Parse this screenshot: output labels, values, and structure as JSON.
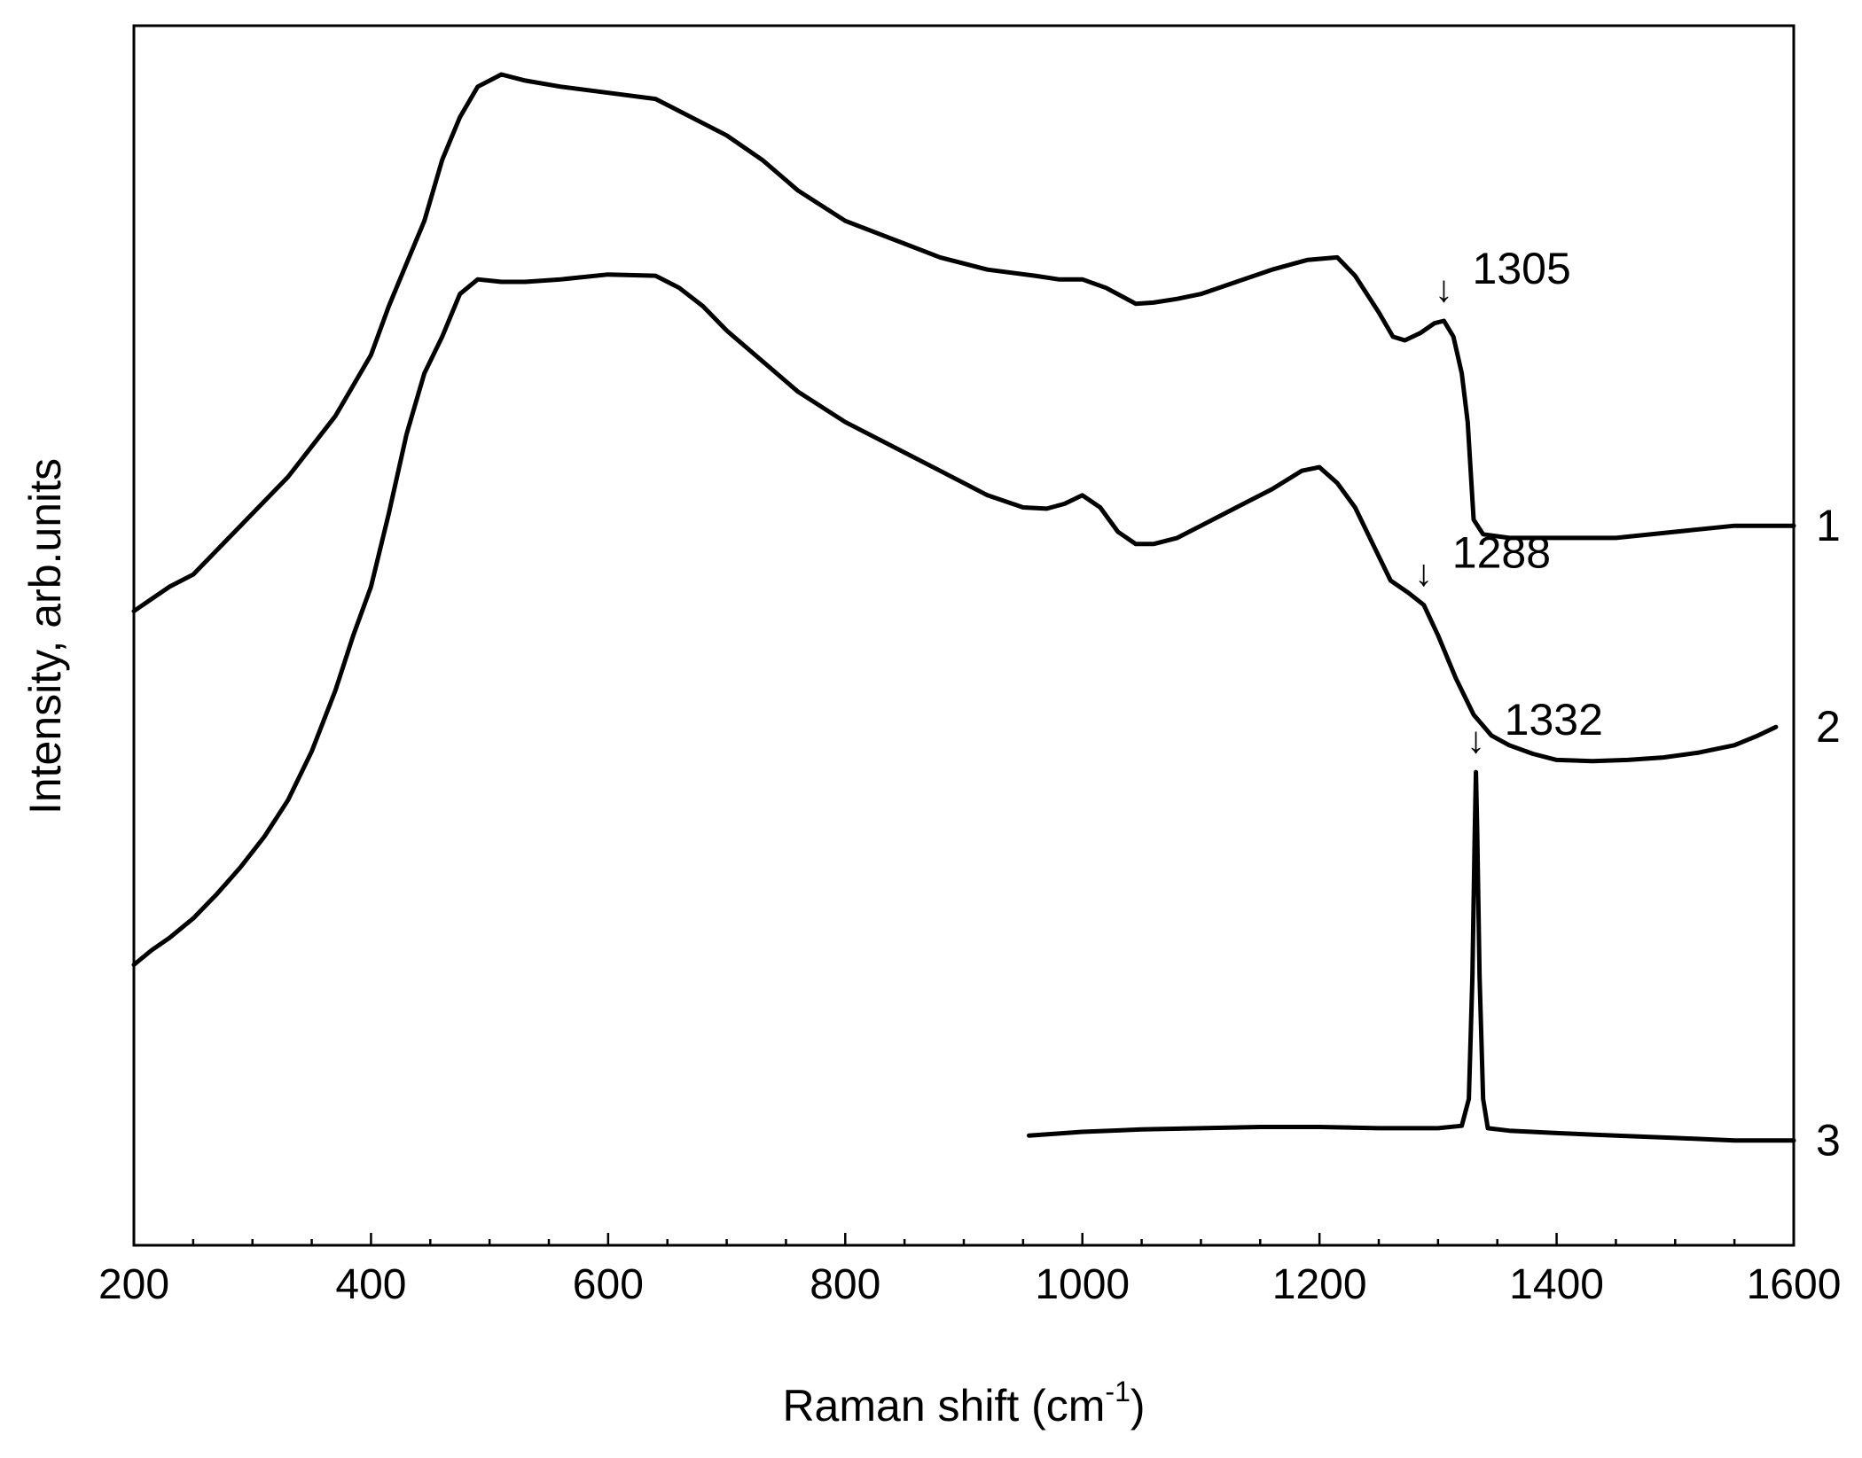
{
  "chart_data": {
    "type": "line",
    "xlabel": "Raman shift (cm",
    "xlabel_sup": "-1",
    "xlabel_close": ")",
    "ylabel": "Intensity, arb.units",
    "xlim": [
      200,
      1600
    ],
    "ylim": [
      0,
      100
    ],
    "x_ticks": [
      200,
      400,
      600,
      800,
      1000,
      1200,
      1400,
      1600
    ],
    "x_tick_labels": [
      "200",
      "400",
      "600",
      "800",
      "1000",
      "1200",
      "1400",
      "1600"
    ],
    "y_tick_labels_shown": false,
    "grid": false,
    "series": [
      {
        "name": "1",
        "color": "#000000",
        "points": [
          [
            200,
            52
          ],
          [
            215,
            53
          ],
          [
            230,
            54
          ],
          [
            250,
            55
          ],
          [
            270,
            57
          ],
          [
            290,
            59
          ],
          [
            310,
            61
          ],
          [
            330,
            63
          ],
          [
            350,
            65.5
          ],
          [
            370,
            68
          ],
          [
            385,
            70.5
          ],
          [
            400,
            73
          ],
          [
            415,
            77
          ],
          [
            430,
            80.5
          ],
          [
            445,
            84
          ],
          [
            460,
            89
          ],
          [
            475,
            92.5
          ],
          [
            490,
            95
          ],
          [
            510,
            96
          ],
          [
            530,
            95.5
          ],
          [
            560,
            95
          ],
          [
            600,
            94.5
          ],
          [
            640,
            94
          ],
          [
            670,
            92.5
          ],
          [
            700,
            91
          ],
          [
            730,
            89
          ],
          [
            760,
            86.5
          ],
          [
            800,
            84
          ],
          [
            840,
            82.5
          ],
          [
            880,
            81
          ],
          [
            920,
            80
          ],
          [
            960,
            79.5
          ],
          [
            980,
            79.2
          ],
          [
            1000,
            79.2
          ],
          [
            1020,
            78.5
          ],
          [
            1045,
            77.2
          ],
          [
            1060,
            77.3
          ],
          [
            1080,
            77.6
          ],
          [
            1100,
            78
          ],
          [
            1130,
            79
          ],
          [
            1160,
            80
          ],
          [
            1190,
            80.8
          ],
          [
            1215,
            81
          ],
          [
            1230,
            79.5
          ],
          [
            1250,
            76.5
          ],
          [
            1262,
            74.5
          ],
          [
            1272,
            74.2
          ],
          [
            1285,
            74.8
          ],
          [
            1297,
            75.6
          ],
          [
            1305,
            75.8
          ],
          [
            1313,
            74.5
          ],
          [
            1320,
            71.5
          ],
          [
            1325,
            67.5
          ],
          [
            1330,
            59.5
          ],
          [
            1338,
            58.3
          ],
          [
            1360,
            58
          ],
          [
            1400,
            58
          ],
          [
            1450,
            58
          ],
          [
            1500,
            58.5
          ],
          [
            1550,
            59
          ],
          [
            1600,
            59
          ]
        ]
      },
      {
        "name": "2",
        "color": "#000000",
        "points": [
          [
            200,
            23
          ],
          [
            215,
            24.2
          ],
          [
            230,
            25.2
          ],
          [
            250,
            26.8
          ],
          [
            270,
            28.8
          ],
          [
            290,
            31
          ],
          [
            310,
            33.5
          ],
          [
            330,
            36.5
          ],
          [
            350,
            40.5
          ],
          [
            370,
            45.5
          ],
          [
            385,
            50
          ],
          [
            400,
            54
          ],
          [
            415,
            60
          ],
          [
            430,
            66.5
          ],
          [
            445,
            71.5
          ],
          [
            460,
            74.5
          ],
          [
            475,
            78
          ],
          [
            490,
            79.2
          ],
          [
            510,
            79
          ],
          [
            530,
            79
          ],
          [
            560,
            79.2
          ],
          [
            600,
            79.6
          ],
          [
            640,
            79.5
          ],
          [
            660,
            78.5
          ],
          [
            680,
            77
          ],
          [
            700,
            75
          ],
          [
            730,
            72.5
          ],
          [
            760,
            70
          ],
          [
            800,
            67.5
          ],
          [
            840,
            65.5
          ],
          [
            880,
            63.5
          ],
          [
            920,
            61.5
          ],
          [
            950,
            60.5
          ],
          [
            970,
            60.4
          ],
          [
            985,
            60.8
          ],
          [
            1000,
            61.5
          ],
          [
            1015,
            60.5
          ],
          [
            1030,
            58.5
          ],
          [
            1045,
            57.5
          ],
          [
            1060,
            57.5
          ],
          [
            1080,
            58
          ],
          [
            1100,
            59
          ],
          [
            1130,
            60.5
          ],
          [
            1160,
            62
          ],
          [
            1185,
            63.5
          ],
          [
            1200,
            63.8
          ],
          [
            1215,
            62.5
          ],
          [
            1230,
            60.5
          ],
          [
            1245,
            57.5
          ],
          [
            1260,
            54.5
          ],
          [
            1275,
            53.5
          ],
          [
            1288,
            52.5
          ],
          [
            1300,
            50
          ],
          [
            1315,
            46.5
          ],
          [
            1330,
            43.5
          ],
          [
            1345,
            41.8
          ],
          [
            1360,
            41
          ],
          [
            1380,
            40.3
          ],
          [
            1400,
            39.8
          ],
          [
            1430,
            39.7
          ],
          [
            1460,
            39.8
          ],
          [
            1490,
            40
          ],
          [
            1520,
            40.4
          ],
          [
            1550,
            41
          ],
          [
            1570,
            41.8
          ],
          [
            1585,
            42.5
          ]
        ]
      },
      {
        "name": "3",
        "color": "#000000",
        "points": [
          [
            955,
            9
          ],
          [
            1000,
            9.3
          ],
          [
            1050,
            9.5
          ],
          [
            1100,
            9.6
          ],
          [
            1150,
            9.7
          ],
          [
            1200,
            9.7
          ],
          [
            1250,
            9.6
          ],
          [
            1300,
            9.6
          ],
          [
            1320,
            9.8
          ],
          [
            1326,
            12
          ],
          [
            1329,
            22
          ],
          [
            1331,
            34
          ],
          [
            1332,
            38.8
          ],
          [
            1333,
            34
          ],
          [
            1335,
            22
          ],
          [
            1338,
            12
          ],
          [
            1342,
            9.6
          ],
          [
            1360,
            9.4
          ],
          [
            1400,
            9.2
          ],
          [
            1450,
            9
          ],
          [
            1500,
            8.8
          ],
          [
            1550,
            8.6
          ],
          [
            1600,
            8.6
          ]
        ]
      }
    ],
    "series_labels": [
      "1",
      "2",
      "3"
    ],
    "annotations": [
      {
        "text": "1305",
        "arrow": "↓",
        "x": 1305,
        "y": 75.8
      },
      {
        "text": "1288",
        "arrow": "↓",
        "x": 1288,
        "y": 52.5
      },
      {
        "text": "1332",
        "arrow": "↓",
        "x": 1332,
        "y": 38.8
      }
    ]
  }
}
